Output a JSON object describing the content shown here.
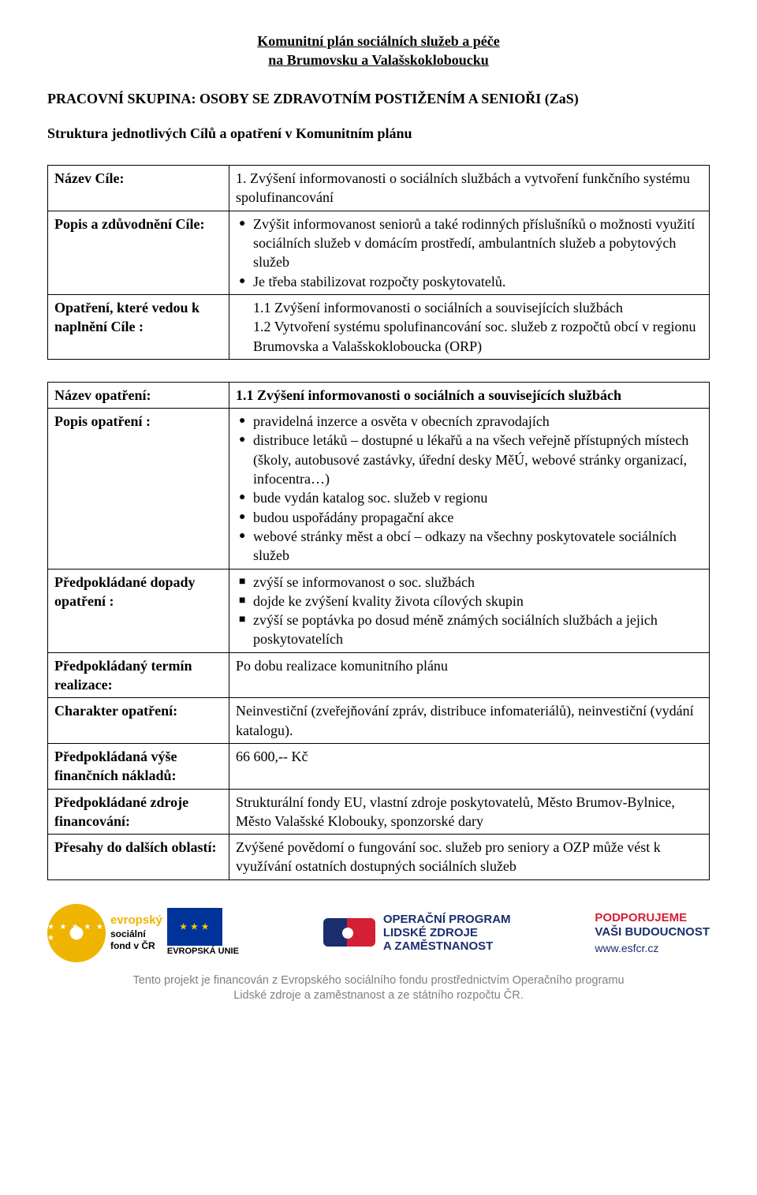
{
  "title_line1": "Komunitní plán sociálních služeb a péče",
  "title_line2": "na Brumovsku a Valašskokloboucku",
  "working_group": "PRACOVNÍ SKUPINA: OSOBY SE ZDRAVOTNÍM POSTIŽENÍM A SENIOŘI (ZaS)",
  "structure_line": "Struktura jednotlivých Cílů a opatření v Komunitním plánu",
  "table1": {
    "rows": {
      "goal_name": {
        "label": "Název Cíle:",
        "value": "1. Zvýšení informovanosti o sociálních službách a vytvoření funkčního systému spolufinancování"
      },
      "goal_desc": {
        "label": "Popis a zdůvodnění Cíle:",
        "bullets": [
          "Zvýšit informovanost seniorů a také rodinných příslušníků o možnosti využití sociálních služeb v domácím prostředí, ambulantních služeb a pobytových služeb",
          "Je třeba stabilizovat rozpočty poskytovatelů."
        ]
      },
      "measures": {
        "label": "Opatření, které vedou k naplnění Cíle :",
        "lines": [
          "1.1 Zvýšení informovanosti o sociálních a souvisejících službách",
          "1.2 Vytvoření systému spolufinancování soc. služeb z rozpočtů obcí v regionu Brumovska a Valašskokloboucka (ORP)"
        ]
      }
    }
  },
  "table2": {
    "rows": {
      "measure_name": {
        "label": "Název opatření:",
        "value": "1.1 Zvýšení informovanosti o sociálních a souvisejících službách"
      },
      "measure_desc": {
        "label": "Popis opatření :",
        "bullets": [
          "pravidelná inzerce a osvěta v obecních zpravodajích",
          "distribuce letáků – dostupné u lékařů a na všech veřejně přístupných místech (školy, autobusové zastávky, úřední desky MěÚ, webové stránky organizací, infocentra…)",
          "bude vydán katalog soc. služeb v regionu",
          "budou uspořádány propagační akce",
          "webové stránky měst a obcí – odkazy na všechny poskytovatele sociálních služeb"
        ]
      },
      "impacts": {
        "label": "Předpokládané dopady opatření :",
        "squares": [
          "zvýší se informovanost o soc. službách",
          "dojde ke zvýšení kvality života cílových skupin",
          "zvýší se poptávka po dosud méně známých sociálních službách a jejich poskytovatelích"
        ]
      },
      "term": {
        "label": "Předpokládaný termín realizace:",
        "value": "Po dobu realizace komunitního plánu"
      },
      "char": {
        "label": "Charakter opatření:",
        "value": "Neinvestiční (zveřejňování zpráv, distribuce infomateriálů), neinvestiční (vydání katalogu)."
      },
      "cost": {
        "label": "Předpokládaná výše finančních nákladů:",
        "value": "66 600,-- Kč"
      },
      "sources": {
        "label": "Předpokládané zdroje financování:",
        "value": "Strukturální fondy EU, vlastní zdroje poskytovatelů, Město Brumov-Bylnice, Město Valašské Klobouky, sponzorské dary"
      },
      "overlap": {
        "label": "Přesahy do dalších oblastí:",
        "value": "Zvýšené povědomí o fungování soc. služeb pro seniory a OZP může vést k využívání ostatních dostupných sociálních služeb"
      }
    }
  },
  "logos": {
    "esf": {
      "name_top": "evropský",
      "name_mid": "sociální",
      "name_bot": "fond v ČR",
      "union": "EVROPSKÁ UNIE"
    },
    "op": {
      "l1": "OPERAČNÍ PROGRAM",
      "l2": "LIDSKÉ ZDROJE",
      "l3": "A ZAMĚSTNANOST"
    },
    "support": {
      "l1": "PODPORUJEME",
      "l2": "VAŠI BUDOUCNOST",
      "url": "www.esfcr.cz"
    }
  },
  "footer_l1": "Tento projekt je financován z Evropského sociálního fondu prostřednictvím Operačního programu",
  "footer_l2": "Lidské zdroje a zaměstnanost a ze státního rozpočtu ČR."
}
